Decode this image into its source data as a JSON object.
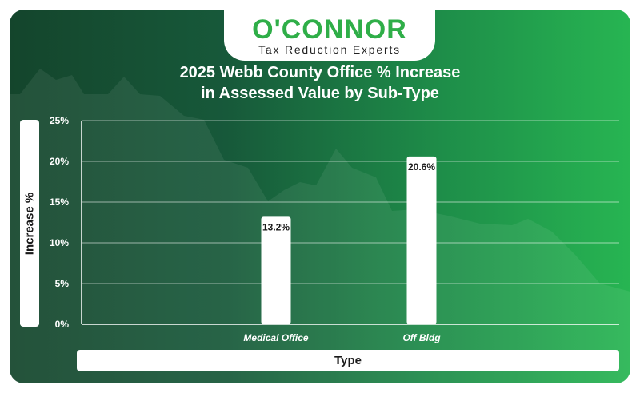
{
  "brand": {
    "name": "O'CONNOR",
    "tagline": "Tax Reduction Experts"
  },
  "colors": {
    "brand_green": "#2fae48",
    "bar": "#ffffff",
    "background_dark": "#14452c",
    "background_light": "#27b552"
  },
  "chart_data": {
    "type": "bar",
    "title_line1": "2025 Webb County Office % Increase",
    "title_line2": "in Assessed Value by Sub-Type",
    "xlabel": "Type",
    "ylabel": "Increase %",
    "categories": [
      "Medical Office",
      "Off Bldg"
    ],
    "values": [
      13.2,
      20.6
    ],
    "data_labels": [
      "13.2%",
      "20.6%"
    ],
    "ylim": [
      0,
      25
    ],
    "yticks": [
      0,
      5,
      10,
      15,
      20,
      25
    ],
    "ytick_labels": [
      "0%",
      "5%",
      "10%",
      "15%",
      "20%",
      "25%"
    ],
    "grid": true,
    "legend": "none"
  }
}
